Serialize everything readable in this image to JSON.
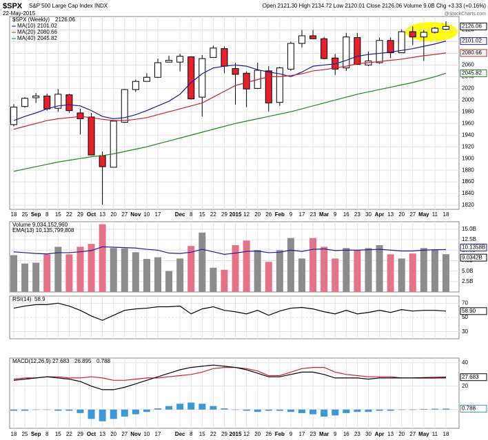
{
  "chart_data": [
    {
      "type": "candlestick",
      "title": "$SPX",
      "subtitle": "S&P 500 Large Cap Index INDX",
      "date": "22-May-2015",
      "summary": "Open 2121.30  High 2134.72  Low 2120.01  Close 2126.06  Volume 9.0B  Chg +3.33 (+0.16%)",
      "source": "@StockCharts.com",
      "name": "$SPX (Weekly)",
      "categories": [
        "18",
        "25",
        "Sep",
        "8",
        "15",
        "22",
        "29",
        "Oct",
        "13",
        "20",
        "27",
        "Nov",
        "10",
        "17",
        null,
        "Dec",
        "8",
        "15",
        "22",
        "29",
        "2015",
        "12",
        "20",
        "26",
        "Feb",
        "9",
        "17",
        "23",
        "Mar",
        "9",
        "16",
        "23",
        "30",
        "Apr",
        "13",
        "20",
        "27",
        "May",
        "11",
        "18"
      ],
      "open": [
        1958,
        1989,
        2004,
        2007,
        1986,
        2009,
        1978,
        1971,
        1905,
        1885,
        1962,
        2018,
        2032,
        2039,
        2065,
        2065,
        2074,
        2005,
        2073,
        2088,
        2054,
        2046,
        2020,
        2050,
        1996,
        2053,
        2097,
        2110,
        2105,
        2072,
        2055,
        2107,
        2060,
        2064,
        2102,
        2081,
        2117,
        2108,
        2116,
        2121.3
      ],
      "high": [
        1993,
        2005,
        2012,
        2011,
        2019,
        2011,
        1985,
        1978,
        1912,
        1965,
        2019,
        2035,
        2046,
        2071,
        2076,
        2079,
        2075,
        2077,
        2093,
        2092,
        2064,
        2049,
        2064,
        2058,
        2057,
        2100,
        2120,
        2120,
        2108,
        2079,
        2115,
        2115,
        2083,
        2107,
        2107,
        2121,
        2126,
        2120,
        2125,
        2134.72
      ],
      "low": [
        1955,
        1987,
        1995,
        1982,
        1980,
        1978,
        1941,
        1906,
        1821,
        1885,
        1961,
        2014,
        2032,
        2038,
        2064,
        2049,
        2001,
        1972,
        2073,
        2046,
        1992,
        1988,
        2019,
        1980,
        1990,
        2050,
        2090,
        2105,
        2070,
        2043,
        2050,
        2061,
        2058,
        2062,
        2072,
        2081,
        2094,
        2067,
        2114,
        2120.01
      ],
      "close": [
        1988,
        2003,
        2007,
        1985,
        2010,
        1982,
        1968,
        1906,
        1886,
        1964,
        2018,
        2032,
        2039,
        2064,
        2068,
        2075,
        2002,
        2071,
        2089,
        2058,
        2044,
        2019,
        2051,
        1995,
        2055,
        2097,
        2110,
        2105,
        2071,
        2053,
        2108,
        2061,
        2067,
        2102,
        2081,
        2117,
        2108,
        2116,
        2123,
        2126.06
      ],
      "up_color": "#ffffff",
      "down_color": "#e8202c",
      "series": [
        {
          "name": "MA(10)",
          "color": "#1a1aa0",
          "values": [
            1965,
            1972,
            1978,
            1985,
            1990,
            1992,
            1990,
            1982,
            1972,
            1968,
            1970,
            1975,
            1982,
            1990,
            1998,
            2010,
            2030,
            2045,
            2055,
            2058,
            2060,
            2058,
            2052,
            2048,
            2045,
            2040,
            2048,
            2058,
            2060,
            2062,
            2068,
            2075,
            2078,
            2080,
            2082,
            2085,
            2088,
            2092,
            2096,
            2101.02
          ]
        },
        {
          "name": "MA(20)",
          "color": "#d0202a",
          "values": [
            1950,
            1955,
            1960,
            1965,
            1968,
            1970,
            1972,
            1970,
            1967,
            1965,
            1965,
            1967,
            1970,
            1975,
            1980,
            1985,
            1990,
            1995,
            2005,
            2015,
            2025,
            2030,
            2035,
            2040,
            2040,
            2042,
            2045,
            2050,
            2052,
            2055,
            2058,
            2062,
            2064,
            2066,
            2068,
            2070,
            2073,
            2076,
            2078,
            2080.66
          ]
        },
        {
          "name": "MA(40)",
          "color": "#1a8a1a",
          "values": [
            1878,
            1882,
            1886,
            1890,
            1894,
            1897,
            1900,
            1903,
            1905,
            1908,
            1912,
            1916,
            1920,
            1925,
            1930,
            1935,
            1940,
            1945,
            1950,
            1955,
            1960,
            1964,
            1968,
            1972,
            1976,
            1980,
            1985,
            1990,
            1995,
            2000,
            2005,
            2010,
            2014,
            2018,
            2022,
            2026,
            2030,
            2035,
            2040,
            2045.82
          ]
        }
      ],
      "ylim": [
        1813,
        2143
      ],
      "yticks": [
        1820,
        1840,
        1860,
        1880,
        1900,
        1920,
        1940,
        1960,
        1980,
        2000,
        2020,
        2040,
        2060,
        2080,
        2100,
        2120
      ],
      "grid": true
    },
    {
      "type": "bar",
      "label": "Volume 9,034,152,960",
      "up_color": "#8c8c8c",
      "down_color": "#e57385",
      "values": [
        8.8,
        6.8,
        7.0,
        9.0,
        10.8,
        9.0,
        10.8,
        11.5,
        16.2,
        10.5,
        10.4,
        9.5,
        7.9,
        8.3,
        5.0,
        8.0,
        11.0,
        14.2,
        5.8,
        5.3,
        11.2,
        12.3,
        10.0,
        7.2,
        10.0,
        12.9,
        8.0,
        12.9,
        10.8,
        8.0,
        10.5,
        10.0,
        10.5,
        11.2,
        9.0,
        8.0,
        9.2,
        10.5,
        10.2,
        9.03415296
      ],
      "last_value_label": "9.0342B",
      "series": [
        {
          "name": "EMA(13) 10,135,799,808",
          "color": "#1a1aa0",
          "last_value_label": "10.1358B",
          "values": [
            9.6,
            9.4,
            9.2,
            9.1,
            9.4,
            9.4,
            9.6,
            9.9,
            10.8,
            10.7,
            10.6,
            10.5,
            10.2,
            10.0,
            9.3,
            9.2,
            9.5,
            10.2,
            9.6,
            9.0,
            9.3,
            9.7,
            9.8,
            9.4,
            9.5,
            10.0,
            9.7,
            10.2,
            10.3,
            9.9,
            10.0,
            10.0,
            10.1,
            10.2,
            10.0,
            9.8,
            9.8,
            10.0,
            10.1,
            10.135799808
          ]
        }
      ],
      "ylim": [
        0,
        16.8
      ],
      "yticks": [
        {
          "value": 2.5,
          "label": "2.5B"
        },
        {
          "value": 5,
          "label": "5.0B"
        },
        {
          "value": 7.5,
          "label": "7.5B"
        },
        {
          "value": 10,
          "label": "10.0B"
        },
        {
          "value": 12.5,
          "label": "12.5B"
        },
        {
          "value": 15,
          "label": "15.0B"
        }
      ]
    },
    {
      "type": "line",
      "series": [
        {
          "name": "RSI(14)",
          "color": "#000000",
          "last_value_label": "58.90",
          "values": [
            63,
            66,
            68,
            68,
            70,
            66,
            60,
            52,
            46,
            53,
            60,
            62,
            63,
            65,
            65,
            66,
            55,
            62,
            65,
            60,
            58,
            55,
            60,
            53,
            59,
            63,
            64,
            62,
            58,
            55,
            60,
            55,
            57,
            60,
            57,
            61,
            59,
            60,
            60,
            58.9
          ]
        }
      ],
      "ylim": [
        20,
        80
      ],
      "yticks": [
        30,
        50,
        70
      ]
    },
    {
      "type": "macd",
      "label": "MACD(12,26,9)",
      "macd": {
        "color": "#000000",
        "values": [
          25,
          26,
          27,
          28,
          27,
          26,
          24,
          20,
          17,
          17,
          19,
          22,
          25,
          28,
          31,
          34,
          36,
          37,
          38,
          37,
          36,
          34,
          31,
          28,
          28,
          30,
          32,
          32,
          30,
          27,
          27,
          27,
          26,
          27,
          27,
          27,
          27,
          27.3,
          27.5,
          27.683
        ]
      },
      "signal": {
        "color": "#d0202a",
        "values": [
          26,
          27,
          27,
          28,
          28,
          27,
          27,
          28,
          27,
          25,
          25,
          26,
          27,
          27,
          28,
          29,
          30,
          32,
          35,
          36,
          36,
          35,
          33,
          29,
          29,
          32,
          35,
          36,
          36,
          32,
          30,
          29,
          28,
          28,
          28,
          27,
          27,
          26.8,
          26.8,
          26.895
        ]
      },
      "histogram": {
        "color": "#3a9ad9",
        "values": [
          -1,
          -1,
          0,
          0,
          -1,
          -1,
          -3,
          -8,
          -10,
          -8,
          -6,
          -4,
          -2,
          1,
          3,
          5,
          6,
          5,
          3,
          1,
          0,
          -1,
          -2,
          -1,
          -1,
          -2,
          -3,
          -4,
          -6,
          -5,
          -3,
          -2,
          -2,
          -1,
          -1,
          0,
          0,
          0.5,
          0.7,
          0.788
        ]
      },
      "ylim": [
        -16,
        44
      ],
      "yticks": [
        0,
        20,
        40
      ]
    }
  ]
}
